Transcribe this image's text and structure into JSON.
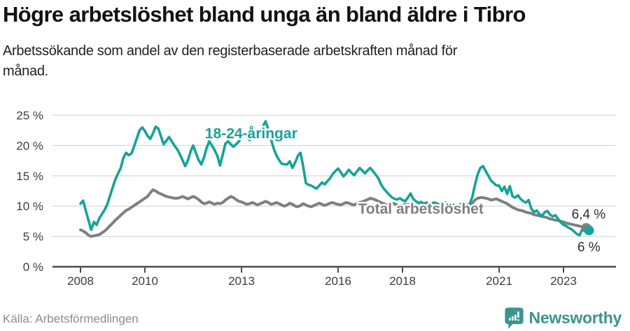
{
  "header": {
    "title": "Högre arbetslöshet bland unga än bland äldre i Tibro",
    "subtitle": "Arbetssökande som andel av den registerbaserade arbetskraften månad för månad."
  },
  "footer": {
    "source": "Källa: Arbetsförmedlingen",
    "brand": "Newsworthy"
  },
  "colors": {
    "youth": "#16a398",
    "total": "#7f7f7f",
    "grid": "#d9d9d9",
    "axis": "#4a4a4a",
    "tick_text": "#3c3c3c",
    "annotation": "#2e2e2e",
    "source_text": "#8c8c8c",
    "brand": "#3b948d",
    "title_text": "#121212"
  },
  "chart_data": {
    "type": "line",
    "title": "Högre arbetslöshet bland unga än bland äldre i Tibro",
    "subtitle": "Arbetssökande som andel av den registerbaserade arbetskraften månad för månad.",
    "frequency": "monthly",
    "x_start": "2008-01",
    "x_end": "2023-10",
    "ylim": [
      0,
      25
    ],
    "grid": true,
    "legend": "inline-labels",
    "yticks": [
      {
        "value": 25,
        "label": "25 %"
      },
      {
        "value": 20,
        "label": "20 %"
      },
      {
        "value": 15,
        "label": "15 %"
      },
      {
        "value": 10,
        "label": "10 %"
      },
      {
        "value": 5,
        "label": "5 %"
      },
      {
        "value": 0,
        "label": "0 %"
      }
    ],
    "xticks": [
      {
        "year": 2008,
        "label": "2008"
      },
      {
        "year": 2010,
        "label": "2010"
      },
      {
        "year": 2013,
        "label": "2013"
      },
      {
        "year": 2016,
        "label": "2016"
      },
      {
        "year": 2018,
        "label": "2018"
      },
      {
        "year": 2021,
        "label": "2021"
      },
      {
        "year": 2023,
        "label": "2023"
      }
    ],
    "series": [
      {
        "id": "youth",
        "name": "18-24-åringar",
        "color": "#16a398",
        "stroke_width": 3.6,
        "end_value": 6.0,
        "end_label": "6 %",
        "values": [
          10.4,
          10.9,
          9.2,
          7.6,
          6.1,
          7.4,
          6.9,
          8.0,
          8.7,
          9.4,
          10.3,
          11.7,
          13.1,
          14.4,
          15.4,
          16.3,
          18.0,
          18.8,
          18.4,
          18.7,
          19.9,
          21.2,
          22.5,
          23.0,
          22.4,
          21.6,
          21.1,
          22.0,
          23.1,
          22.8,
          21.5,
          20.2,
          20.8,
          21.4,
          20.7,
          20.0,
          19.4,
          18.6,
          17.6,
          16.6,
          17.5,
          19.0,
          20.0,
          18.8,
          17.6,
          16.9,
          18.0,
          19.6,
          20.7,
          20.0,
          19.2,
          18.3,
          16.7,
          18.5,
          20.3,
          20.7,
          20.2,
          19.8,
          20.2,
          20.7,
          21.3,
          21.9,
          21.5,
          20.9,
          21.4,
          22.1,
          21.6,
          22.3,
          23.2,
          24.0,
          22.6,
          21.0,
          19.5,
          18.4,
          17.6,
          17.0,
          16.9,
          16.9,
          17.4,
          16.3,
          17.2,
          18.3,
          18.8,
          16.5,
          13.8,
          13.5,
          13.4,
          13.1,
          12.9,
          13.4,
          13.9,
          13.6,
          14.1,
          14.6,
          15.3,
          15.8,
          16.2,
          15.6,
          14.9,
          15.4,
          16.0,
          15.5,
          15.1,
          15.7,
          16.3,
          15.9,
          15.4,
          15.9,
          16.3,
          15.8,
          15.2,
          14.6,
          13.6,
          12.9,
          12.4,
          11.9,
          11.5,
          11.2,
          11.1,
          11.3,
          11.0,
          10.8,
          11.4,
          12.1,
          11.2,
          10.8,
          10.5,
          10.7,
          10.4,
          10.6,
          10.3,
          10.5,
          10.6,
          10.4,
          10.2,
          10.4,
          10.6,
          10.3,
          10.5,
          10.2,
          10.0,
          10.2,
          10.4,
          10.3,
          10.2,
          10.3,
          11.5,
          13.5,
          15.2,
          16.3,
          16.6,
          15.8,
          15.0,
          14.2,
          13.8,
          13.4,
          13.4,
          12.5,
          13.2,
          12.0,
          13.3,
          11.6,
          11.4,
          11.8,
          11.2,
          10.8,
          10.6,
          11.0,
          9.6,
          9.0,
          9.3,
          8.7,
          8.4,
          9.0,
          9.2,
          8.6,
          8.3,
          8.5,
          7.9,
          7.3,
          6.9,
          6.7,
          6.4,
          6.2,
          5.8,
          5.4,
          5.2,
          6.2,
          6.4,
          6.0
        ]
      },
      {
        "id": "total",
        "name": "Total arbetslöshet",
        "color": "#7f7f7f",
        "stroke_width": 4,
        "end_value": 6.4,
        "end_label": "6,4 %",
        "values": [
          6.1,
          5.9,
          5.6,
          5.2,
          5.0,
          5.1,
          5.2,
          5.3,
          5.6,
          5.9,
          6.3,
          6.8,
          7.2,
          7.7,
          8.1,
          8.5,
          8.9,
          9.3,
          9.5,
          9.8,
          10.1,
          10.4,
          10.7,
          11.0,
          11.3,
          11.6,
          12.2,
          12.7,
          12.5,
          12.2,
          12.0,
          11.8,
          11.6,
          11.5,
          11.4,
          11.3,
          11.3,
          11.4,
          11.6,
          11.4,
          11.2,
          11.4,
          11.6,
          11.4,
          11.1,
          10.7,
          10.4,
          10.5,
          10.7,
          10.5,
          10.3,
          10.5,
          10.4,
          10.6,
          11.0,
          11.3,
          11.6,
          11.4,
          11.1,
          10.8,
          10.7,
          10.5,
          10.3,
          10.4,
          10.6,
          10.4,
          10.2,
          10.4,
          10.6,
          10.8,
          10.6,
          10.3,
          10.4,
          10.6,
          10.4,
          10.2,
          10.0,
          10.2,
          10.5,
          10.3,
          10.0,
          9.9,
          10.1,
          10.4,
          10.2,
          10.0,
          9.9,
          10.1,
          10.3,
          10.5,
          10.3,
          10.1,
          10.3,
          10.5,
          10.6,
          10.4,
          10.3,
          10.2,
          10.4,
          10.6,
          10.5,
          10.3,
          10.2,
          10.4,
          10.6,
          10.7,
          10.9,
          11.1,
          11.3,
          11.2,
          11.0,
          10.8,
          10.6,
          10.4,
          10.2,
          10.3,
          10.5,
          10.4,
          10.2,
          10.0,
          10.1,
          10.3,
          10.2,
          10.4,
          10.2,
          10.0,
          9.9,
          10.1,
          10.0,
          9.8,
          9.9,
          10.0,
          10.1,
          10.0,
          9.9,
          9.8,
          9.9,
          10.0,
          10.1,
          9.9,
          9.8,
          9.9,
          10.0,
          10.1,
          10.0,
          10.1,
          10.5,
          11.0,
          11.3,
          11.4,
          11.4,
          11.3,
          11.2,
          11.0,
          11.1,
          11.2,
          11.0,
          10.8,
          10.6,
          10.4,
          10.1,
          9.8,
          9.6,
          9.4,
          9.3,
          9.2,
          9.0,
          8.9,
          8.8,
          8.6,
          8.5,
          8.4,
          8.3,
          8.2,
          8.1,
          7.9,
          7.8,
          7.7,
          7.6,
          7.5,
          7.4,
          7.2,
          7.1,
          7.0,
          6.9,
          6.8,
          6.7,
          6.6,
          6.5,
          6.4
        ]
      }
    ],
    "series_labels": [
      {
        "series": "youth",
        "text": "18-24-åringar",
        "year": 2013.3,
        "pct": 22.0
      },
      {
        "series": "total",
        "text": "Total arbetslöshet",
        "year": 2018.57,
        "pct": 9.56
      }
    ],
    "annotations": [
      {
        "text": "6,4 %",
        "year": 2023.78,
        "pct": 8.76
      },
      {
        "text": "6 %",
        "year": 2023.79,
        "pct": 3.34
      }
    ]
  }
}
